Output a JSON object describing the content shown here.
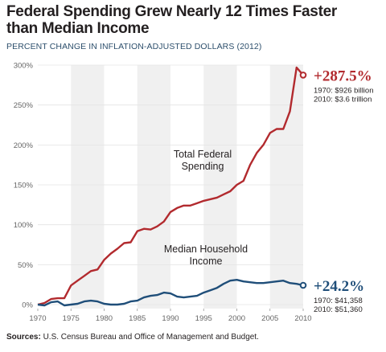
{
  "chart_data": {
    "type": "line",
    "title": "Federal Spending Grew Nearly 12 Times Faster than Median Income",
    "subtitle": "PERCENT CHANGE IN INFLATION-ADJUSTED DOLLARS (2012)",
    "source": {
      "prefix": "Sources:",
      "text": "U.S. Census Bureau and Office of Management and Budget."
    },
    "x_ticks": [
      "1970",
      "1975",
      "1980",
      "1985",
      "1990",
      "1995",
      "2000",
      "2005",
      "2010"
    ],
    "y_ticks": [
      "0%",
      "50%",
      "100%",
      "150%",
      "200%",
      "250%",
      "300%"
    ],
    "xlim": [
      1970,
      2010
    ],
    "ylim": [
      -5,
      300
    ],
    "grid": "alternating vertical bands",
    "series": [
      {
        "name": "Total Federal Spending",
        "label_lines": [
          "Total Federal",
          "Spending"
        ],
        "color": "#b22a2e",
        "x": [
          1970,
          1971,
          1972,
          1973,
          1974,
          1975,
          1976,
          1977,
          1978,
          1979,
          1980,
          1981,
          1982,
          1983,
          1984,
          1985,
          1986,
          1987,
          1988,
          1989,
          1990,
          1991,
          1992,
          1993,
          1994,
          1995,
          1996,
          1997,
          1998,
          1999,
          2000,
          2001,
          2002,
          2003,
          2004,
          2005,
          2006,
          2007,
          2008,
          2009,
          2010
        ],
        "values": [
          0,
          2,
          7,
          8,
          8,
          24,
          30,
          36,
          42,
          44,
          56,
          64,
          70,
          77,
          78,
          92,
          95,
          94,
          98,
          104,
          116,
          121,
          124,
          124,
          127,
          130,
          132,
          134,
          138,
          142,
          150,
          155,
          175,
          190,
          200,
          215,
          220,
          220,
          242,
          297,
          287.5
        ],
        "end_label": "+287.5%",
        "notes": [
          "1970: $926 billion",
          "2010: $3.6 trillion"
        ]
      },
      {
        "name": "Median Household Income",
        "label_lines": [
          "Median Household",
          "Income"
        ],
        "color": "#1f4e79",
        "x": [
          1970,
          1971,
          1972,
          1973,
          1974,
          1975,
          1976,
          1977,
          1978,
          1979,
          1980,
          1981,
          1982,
          1983,
          1984,
          1985,
          1986,
          1987,
          1988,
          1989,
          1990,
          1991,
          1992,
          1993,
          1994,
          1995,
          1996,
          1997,
          1998,
          1999,
          2000,
          2001,
          2002,
          2003,
          2004,
          2005,
          2006,
          2007,
          2008,
          2009,
          2010
        ],
        "values": [
          0,
          -1,
          3,
          4,
          -1,
          0,
          1,
          4,
          5,
          4,
          1,
          0,
          0,
          1,
          4,
          5,
          9,
          11,
          12,
          15,
          14,
          10,
          9,
          10,
          11,
          15,
          18,
          21,
          26,
          30,
          31,
          29,
          28,
          27,
          27,
          28,
          29,
          30,
          27,
          26,
          24.2
        ],
        "end_label": "+24.2%",
        "notes": [
          "1970: $41,358",
          "2010: $51,360"
        ]
      }
    ]
  }
}
